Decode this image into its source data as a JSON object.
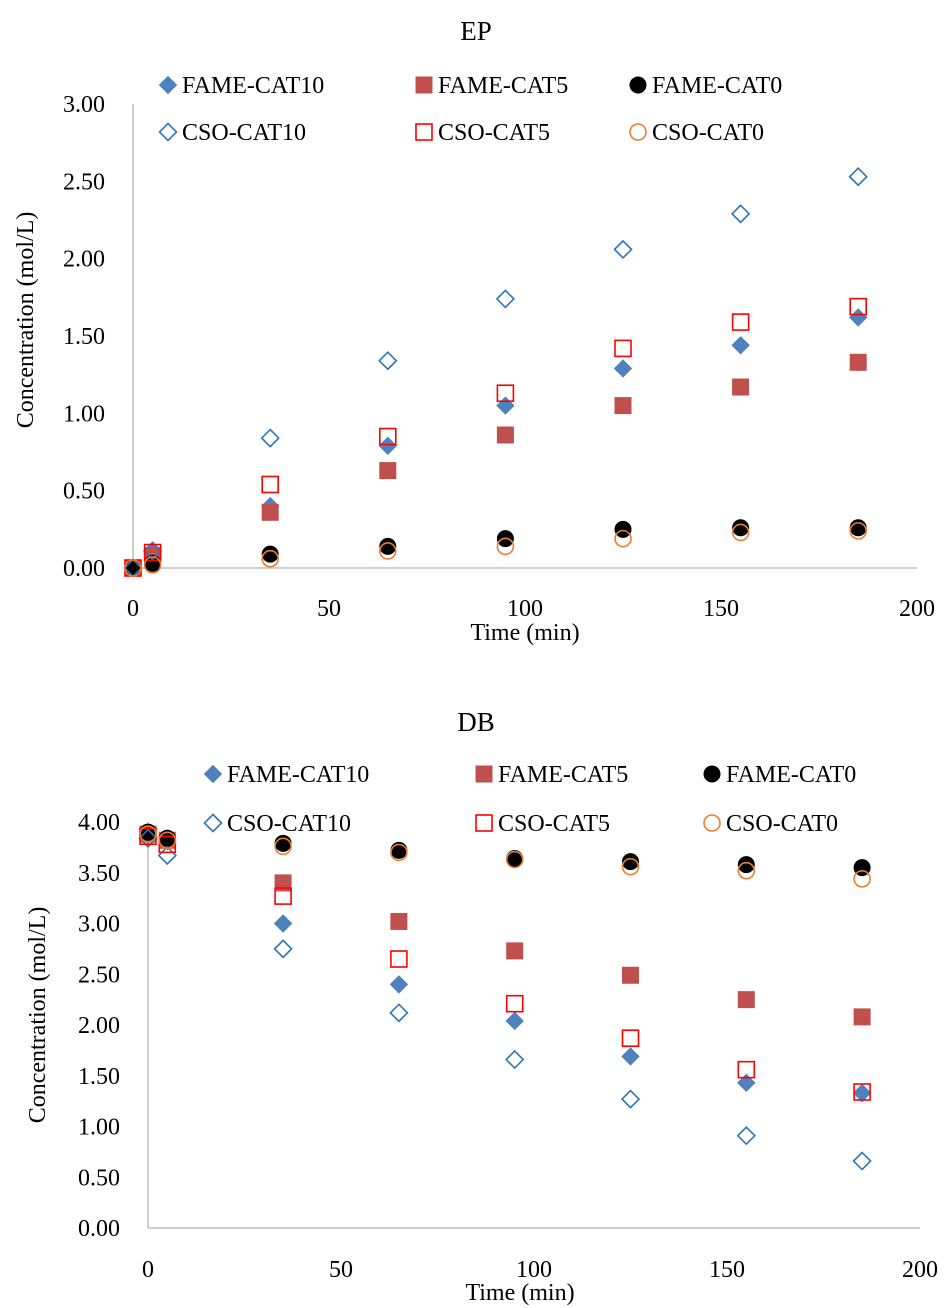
{
  "chart_data": [
    {
      "type": "scatter",
      "title": "EP",
      "xlabel": "Time (min)",
      "ylabel": "Concentration (mol/L)",
      "xlim": [
        0,
        200
      ],
      "ylim": [
        0,
        3
      ],
      "x_ticks": [
        "0",
        "50",
        "100",
        "150",
        "200"
      ],
      "y_ticks": [
        "0.00",
        "0.50",
        "1.00",
        "1.50",
        "2.00",
        "2.50",
        "3.00"
      ],
      "grid": false,
      "legend": "top",
      "series": [
        {
          "name": "FAME-CAT10",
          "marker": "diamond-filled",
          "color": "#4f81bd",
          "x": [
            0,
            5,
            35,
            65,
            95,
            125,
            155,
            185
          ],
          "y": [
            0.0,
            0.1,
            0.4,
            0.79,
            1.05,
            1.29,
            1.44,
            1.62
          ]
        },
        {
          "name": "FAME-CAT5",
          "marker": "square-filled",
          "color": "#c0504d",
          "x": [
            0,
            5,
            35,
            65,
            95,
            125,
            155,
            185
          ],
          "y": [
            0.0,
            0.08,
            0.36,
            0.63,
            0.86,
            1.05,
            1.17,
            1.33
          ]
        },
        {
          "name": "FAME-CAT0",
          "marker": "circle-filled",
          "color": "#000000",
          "x": [
            0,
            5,
            35,
            65,
            95,
            125,
            155,
            185
          ],
          "y": [
            0.0,
            0.03,
            0.09,
            0.14,
            0.19,
            0.25,
            0.26,
            0.26
          ]
        },
        {
          "name": "CSO-CAT10",
          "marker": "diamond-open",
          "color": "#2e75b6",
          "x": [
            0,
            5,
            35,
            65,
            95,
            125,
            155,
            185
          ],
          "y": [
            0.0,
            0.11,
            0.84,
            1.34,
            1.74,
            2.06,
            2.29,
            2.53
          ]
        },
        {
          "name": "CSO-CAT5",
          "marker": "square-open",
          "color": "#ff0000",
          "x": [
            0,
            5,
            35,
            65,
            95,
            125,
            155,
            185
          ],
          "y": [
            0.0,
            0.1,
            0.54,
            0.85,
            1.13,
            1.42,
            1.59,
            1.69
          ]
        },
        {
          "name": "CSO-CAT0",
          "marker": "circle-open",
          "color": "#ed7d31",
          "x": [
            0,
            5,
            35,
            65,
            95,
            125,
            155,
            185
          ],
          "y": [
            0.0,
            0.02,
            0.06,
            0.11,
            0.14,
            0.19,
            0.23,
            0.24
          ]
        }
      ]
    },
    {
      "type": "scatter",
      "title": "DB",
      "xlabel": "Time (min)",
      "ylabel": "Concentration (mol/L)",
      "xlim": [
        0,
        200
      ],
      "ylim": [
        0,
        4
      ],
      "x_ticks": [
        "0",
        "50",
        "100",
        "150",
        "200"
      ],
      "y_ticks": [
        "0.00",
        "0.50",
        "1.00",
        "1.50",
        "2.00",
        "2.50",
        "3.00",
        "3.50",
        "4.00"
      ],
      "grid": false,
      "legend": "top",
      "series": [
        {
          "name": "FAME-CAT10",
          "marker": "diamond-filled",
          "color": "#4f81bd",
          "x": [
            0,
            5,
            35,
            65,
            95,
            125,
            155,
            185
          ],
          "y": [
            3.87,
            3.81,
            3.0,
            2.4,
            2.04,
            1.69,
            1.43,
            1.33
          ]
        },
        {
          "name": "FAME-CAT5",
          "marker": "square-filled",
          "color": "#c0504d",
          "x": [
            0,
            5,
            35,
            65,
            95,
            125,
            155,
            185
          ],
          "y": [
            3.88,
            3.82,
            3.4,
            3.02,
            2.73,
            2.49,
            2.25,
            2.08
          ]
        },
        {
          "name": "FAME-CAT0",
          "marker": "circle-filled",
          "color": "#000000",
          "x": [
            0,
            5,
            35,
            65,
            95,
            125,
            155,
            185
          ],
          "y": [
            3.9,
            3.84,
            3.79,
            3.72,
            3.64,
            3.61,
            3.58,
            3.55
          ]
        },
        {
          "name": "CSO-CAT10",
          "marker": "diamond-open",
          "color": "#2e75b6",
          "x": [
            0,
            5,
            35,
            65,
            95,
            125,
            155,
            185
          ],
          "y": [
            3.84,
            3.67,
            2.75,
            2.12,
            1.66,
            1.27,
            0.91,
            0.66
          ]
        },
        {
          "name": "CSO-CAT5",
          "marker": "square-open",
          "color": "#ff0000",
          "x": [
            0,
            5,
            35,
            65,
            95,
            125,
            155,
            185
          ],
          "y": [
            3.86,
            3.78,
            3.27,
            2.65,
            2.21,
            1.87,
            1.56,
            1.34
          ]
        },
        {
          "name": "CSO-CAT0",
          "marker": "circle-open",
          "color": "#ed7d31",
          "x": [
            0,
            5,
            35,
            65,
            95,
            125,
            155,
            185
          ],
          "y": [
            3.88,
            3.82,
            3.76,
            3.7,
            3.63,
            3.56,
            3.52,
            3.44
          ]
        }
      ]
    }
  ]
}
